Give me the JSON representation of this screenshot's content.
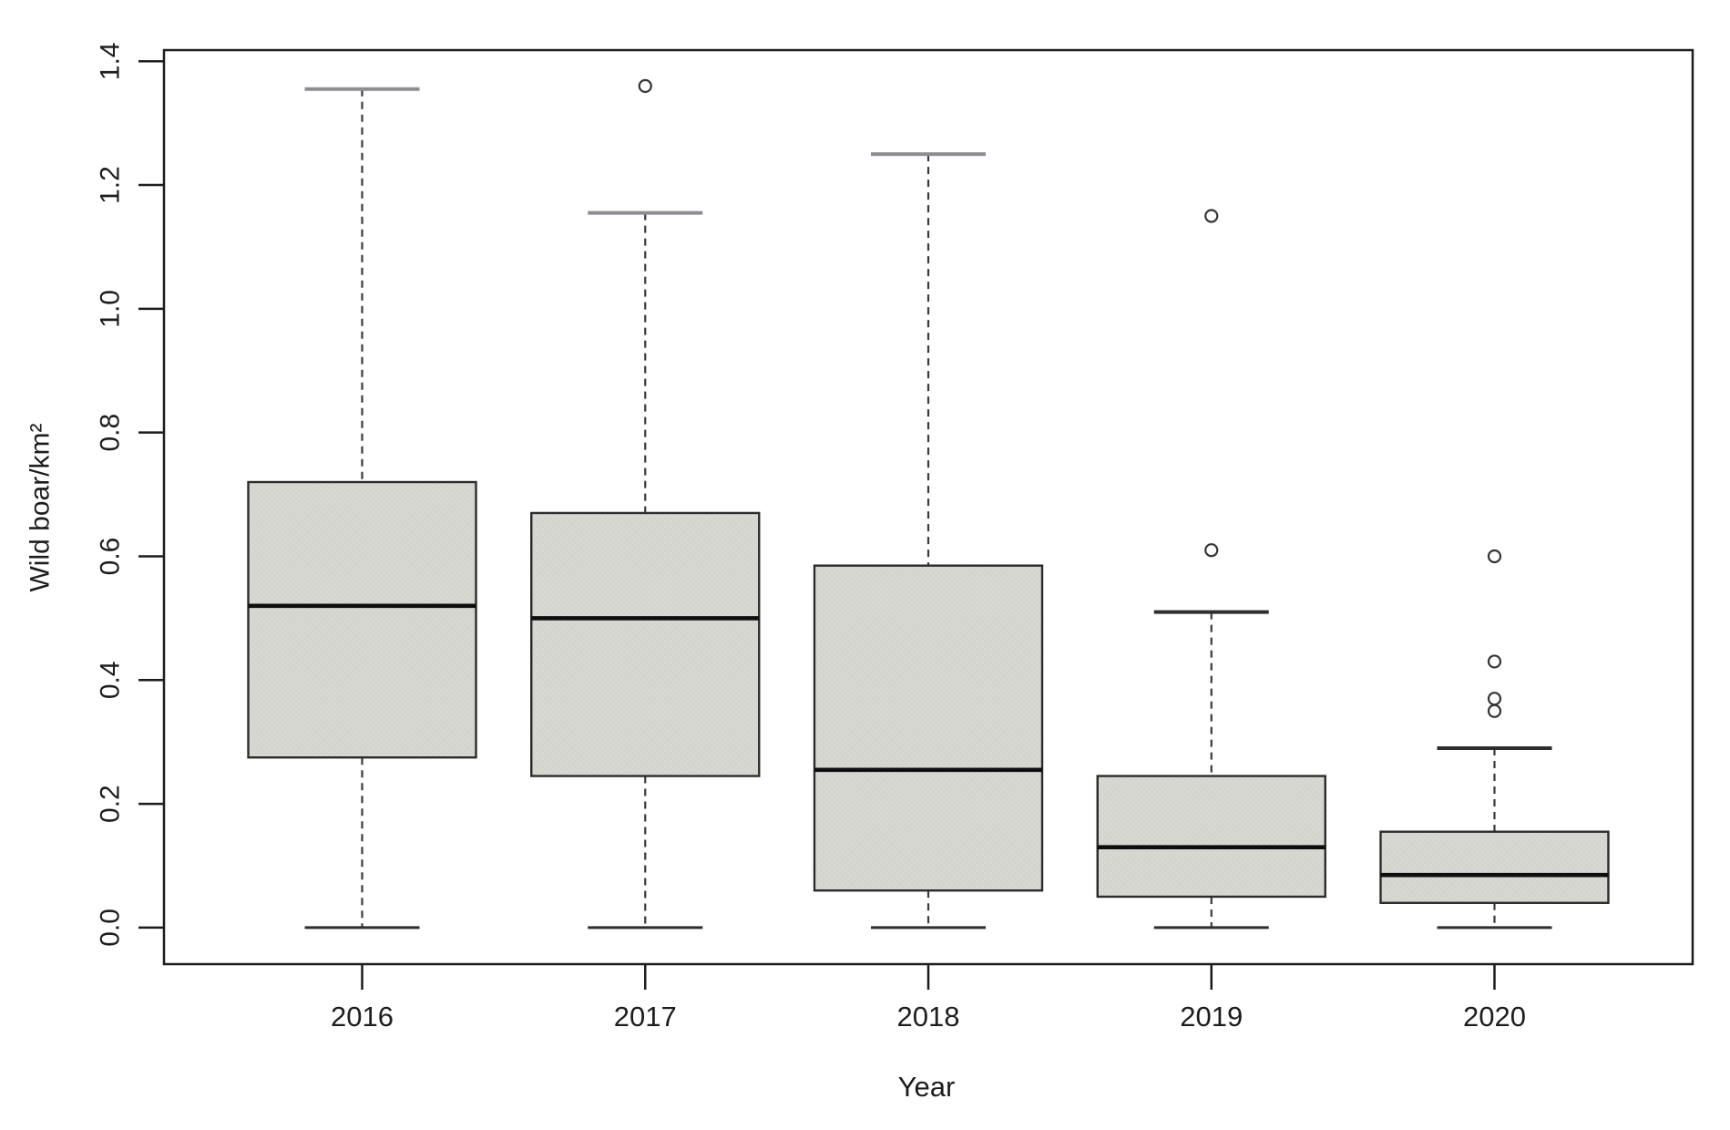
{
  "figure": {
    "background": "#ffffff"
  },
  "chart_data": {
    "type": "boxplot",
    "title": "",
    "xlabel": "Year",
    "ylabel": "Wild boar/km²",
    "categories": [
      "2016",
      "2017",
      "2018",
      "2019",
      "2020"
    ],
    "y_ticks": [
      0.0,
      0.2,
      0.4,
      0.6,
      0.8,
      1.0,
      1.2,
      1.4
    ],
    "y_tick_labels": [
      "0.0",
      "0.2",
      "0.4",
      "0.6",
      "0.8",
      "1.0",
      "1.2",
      "1.4"
    ],
    "ylim": [
      -0.059,
      1.418
    ],
    "grid": "off",
    "legend": "none",
    "series": [
      {
        "label": "2016",
        "lower_whisker": 0.0,
        "q1": 0.275,
        "median": 0.52,
        "q3": 0.72,
        "upper_whisker": 1.355,
        "outliers": [],
        "top_cap": "gray"
      },
      {
        "label": "2017",
        "lower_whisker": 0.0,
        "q1": 0.245,
        "median": 0.5,
        "q3": 0.67,
        "upper_whisker": 1.155,
        "outliers": [
          1.36
        ],
        "top_cap": "gray"
      },
      {
        "label": "2018",
        "lower_whisker": 0.0,
        "q1": 0.06,
        "median": 0.255,
        "q3": 0.585,
        "upper_whisker": 1.25,
        "outliers": [],
        "top_cap": "gray"
      },
      {
        "label": "2019",
        "lower_whisker": 0.0,
        "q1": 0.05,
        "median": 0.13,
        "q3": 0.245,
        "upper_whisker": 0.51,
        "outliers": [
          0.61,
          1.15
        ],
        "top_cap": "dark"
      },
      {
        "label": "2020",
        "lower_whisker": 0.0,
        "q1": 0.04,
        "median": 0.085,
        "q3": 0.155,
        "upper_whisker": 0.29,
        "outliers": [
          0.35,
          0.37,
          0.43,
          0.6
        ],
        "top_cap": "dark"
      }
    ]
  },
  "style": {
    "box_fill": "#d8d8d3",
    "box_border": "#2b2b2b",
    "median_color": "#0e0e0e",
    "whisker_color": "#3a3a3a",
    "cap_gray": "#8c8c92",
    "cap_dark": "#2e2e2e",
    "axis_color": "#1c1c1c",
    "text_color": "#1d1d1f"
  }
}
